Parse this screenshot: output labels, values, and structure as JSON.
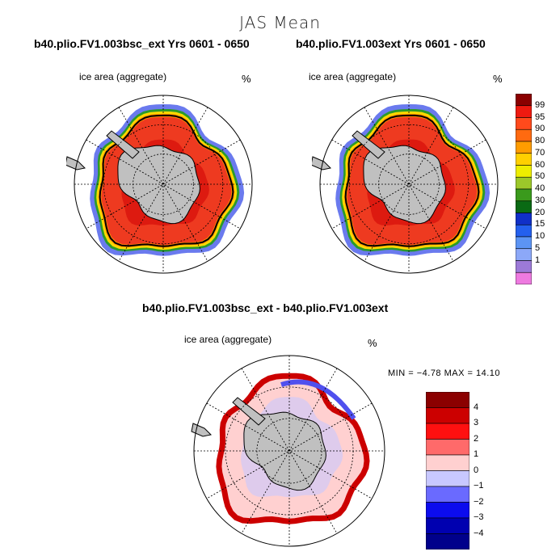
{
  "title": "JAS Mean",
  "panels": [
    {
      "title": "b40.plio.FV1.003bsc_ext  Yrs 0601 - 0650",
      "variable": "ice area  (aggregate)",
      "unit": "%"
    },
    {
      "title": "b40.plio.FV1.003ext  Yrs 0601 - 0650",
      "variable": "ice area  (aggregate)",
      "unit": "%"
    }
  ],
  "diff_panel": {
    "title": "b40.plio.FV1.003bsc_ext - b40.plio.FV1.003ext",
    "variable": "ice area  (aggregate)",
    "unit": "%",
    "min_label": "MIN =",
    "min_value": "−4.78",
    "max_label": "MAX =",
    "max_value": "14.10"
  },
  "colorbar_main": {
    "ticks": [
      "99",
      "95",
      "90",
      "80",
      "70",
      "60",
      "50",
      "40",
      "30",
      "20",
      "15",
      "10",
      "5",
      "1"
    ],
    "colors": [
      "#8b0000",
      "#ee1a10",
      "#ff4a1c",
      "#ff6a10",
      "#ff9c00",
      "#ffd000",
      "#eeee00",
      "#9cc82a",
      "#3a9a1c",
      "#0a6a14",
      "#1030c8",
      "#2460ee",
      "#5c94f4",
      "#8ca8f8",
      "#9c7ad8",
      "#ee7ae0"
    ]
  },
  "colorbar_diff": {
    "ticks": [
      "4",
      "3",
      "2",
      "1",
      "0",
      "−1",
      "−2",
      "−3",
      "−4"
    ],
    "colors": [
      "#8b0000",
      "#cc0000",
      "#ff1010",
      "#ff6a6a",
      "#ffd0d0",
      "#c8c8ff",
      "#6a6aff",
      "#0c0cee",
      "#0000b0",
      "#00008b"
    ]
  },
  "map_colors": {
    "land": "#c0c0c0",
    "ocean": "#ffffff",
    "grid": "#000000",
    "ice_red": "#ee3a20",
    "ice_dark": "#dd1a10",
    "ice_orange": "#ff8a00",
    "ice_yellow": "#ffd800",
    "ice_green": "#2a9a2a",
    "ice_blue": "#6a7aee",
    "diff_pink": "#ffd0d0",
    "diff_red": "#cc0000",
    "diff_blue": "#5050ee",
    "diff_lightblue": "#c8c8ff"
  }
}
